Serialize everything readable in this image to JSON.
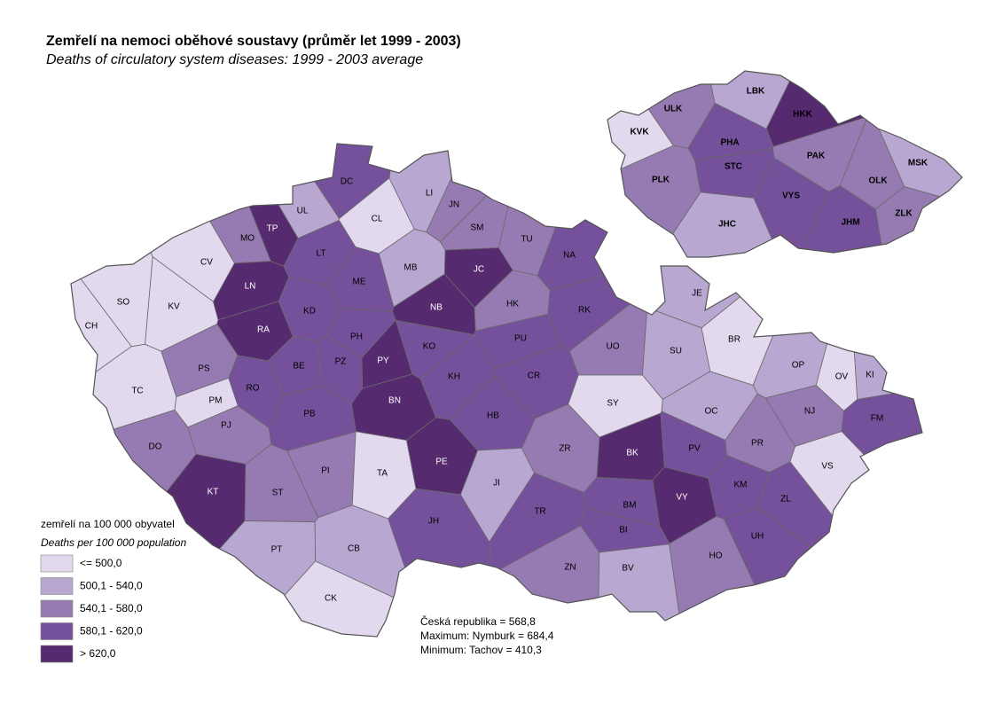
{
  "title": "Zemřelí na nemoci oběhové soustavy (průměr let 1999 - 2003)",
  "subtitle": "Deaths of circulatory system diseases: 1999 - 2003 average",
  "legend": {
    "title": "zemřelí na 100 000 obyvatel",
    "subtitle": "Deaths per 100 000 population",
    "items": [
      {
        "label": "<= 500,0",
        "color": "#e2d9ef"
      },
      {
        "label": "500,1 - 540,0",
        "color": "#b8a7d1"
      },
      {
        "label": "540,1 - 580,0",
        "color": "#967bb2"
      },
      {
        "label": "580,1 - 620,0",
        "color": "#75519b"
      },
      {
        "label": "> 620,0",
        "color": "#552a6f"
      }
    ]
  },
  "districts": [
    {
      "label": "TP",
      "color": "#552a6f"
    },
    {
      "label": "UL",
      "color": "#b8a7d1"
    },
    {
      "label": "DC",
      "color": "#75519b"
    },
    {
      "label": "CL",
      "color": "#e2d9ef"
    },
    {
      "label": "LI",
      "color": "#b8a7d1"
    },
    {
      "label": "JN",
      "color": "#967bb2"
    },
    {
      "label": "SM",
      "color": "#967bb2"
    },
    {
      "label": "TU",
      "color": "#967bb2"
    },
    {
      "label": "NA",
      "color": "#75519b"
    },
    {
      "label": "MO",
      "color": "#967bb2"
    },
    {
      "label": "CV",
      "color": "#e2d9ef"
    },
    {
      "label": "SO",
      "color": "#e2d9ef"
    },
    {
      "label": "KV",
      "color": "#e2d9ef"
    },
    {
      "label": "CH",
      "color": "#e2d9ef"
    },
    {
      "label": "LN",
      "color": "#552a6f"
    },
    {
      "label": "LT",
      "color": "#75519b"
    },
    {
      "label": "ME",
      "color": "#75519b"
    },
    {
      "label": "MB",
      "color": "#b8a7d1"
    },
    {
      "label": "JC",
      "color": "#552a6f"
    },
    {
      "label": "JE",
      "color": "#b8a7d1"
    },
    {
      "label": "KD",
      "color": "#75519b"
    },
    {
      "label": "NB",
      "color": "#552a6f"
    },
    {
      "label": "HK",
      "color": "#967bb2"
    },
    {
      "label": "RK",
      "color": "#75519b"
    },
    {
      "label": "RA",
      "color": "#552a6f"
    },
    {
      "label": "PH",
      "color": "#75519b"
    },
    {
      "label": "PY",
      "color": "#552a6f"
    },
    {
      "label": "KO",
      "color": "#75519b"
    },
    {
      "label": "PU",
      "color": "#75519b"
    },
    {
      "label": "UO",
      "color": "#967bb2"
    },
    {
      "label": "SU",
      "color": "#b8a7d1"
    },
    {
      "label": "BR",
      "color": "#e2d9ef"
    },
    {
      "label": "OP",
      "color": "#b8a7d1"
    },
    {
      "label": "KI",
      "color": "#b8a7d1"
    },
    {
      "label": "OV",
      "color": "#e2d9ef"
    },
    {
      "label": "PS",
      "color": "#967bb2"
    },
    {
      "label": "BE",
      "color": "#75519b"
    },
    {
      "label": "PZ",
      "color": "#75519b"
    },
    {
      "label": "RO",
      "color": "#75519b"
    },
    {
      "label": "KH",
      "color": "#75519b"
    },
    {
      "label": "CR",
      "color": "#75519b"
    },
    {
      "label": "TC",
      "color": "#e2d9ef"
    },
    {
      "label": "PM",
      "color": "#e2d9ef"
    },
    {
      "label": "BN",
      "color": "#552a6f"
    },
    {
      "label": "SY",
      "color": "#e2d9ef"
    },
    {
      "label": "OC",
      "color": "#b8a7d1"
    },
    {
      "label": "NJ",
      "color": "#967bb2"
    },
    {
      "label": "FM",
      "color": "#75519b"
    },
    {
      "label": "PJ",
      "color": "#967bb2"
    },
    {
      "label": "PB",
      "color": "#75519b"
    },
    {
      "label": "HB",
      "color": "#75519b"
    },
    {
      "label": "PR",
      "color": "#967bb2"
    },
    {
      "label": "DO",
      "color": "#967bb2"
    },
    {
      "label": "PI",
      "color": "#967bb2"
    },
    {
      "label": "TA",
      "color": "#e2d9ef"
    },
    {
      "label": "PE",
      "color": "#552a6f"
    },
    {
      "label": "ZR",
      "color": "#967bb2"
    },
    {
      "label": "BK",
      "color": "#552a6f"
    },
    {
      "label": "PV",
      "color": "#75519b"
    },
    {
      "label": "VS",
      "color": "#e2d9ef"
    },
    {
      "label": "KT",
      "color": "#552a6f"
    },
    {
      "label": "ST",
      "color": "#967bb2"
    },
    {
      "label": "JI",
      "color": "#b8a7d1"
    },
    {
      "label": "VY",
      "color": "#552a6f"
    },
    {
      "label": "KM",
      "color": "#75519b"
    },
    {
      "label": "ZL",
      "color": "#75519b"
    },
    {
      "label": "TR",
      "color": "#75519b"
    },
    {
      "label": "BM",
      "color": "#75519b"
    },
    {
      "label": "JH",
      "color": "#75519b"
    },
    {
      "label": "BI",
      "color": "#75519b"
    },
    {
      "label": "UH",
      "color": "#75519b"
    },
    {
      "label": "PT",
      "color": "#b8a7d1"
    },
    {
      "label": "CB",
      "color": "#b8a7d1"
    },
    {
      "label": "HO",
      "color": "#967bb2"
    },
    {
      "label": "ZN",
      "color": "#967bb2"
    },
    {
      "label": "BV",
      "color": "#b8a7d1"
    },
    {
      "label": "CK",
      "color": "#e2d9ef"
    }
  ],
  "regions": [
    {
      "label": "KVK",
      "color": "#e2d9ef"
    },
    {
      "label": "ULK",
      "color": "#967bb2"
    },
    {
      "label": "LBK",
      "color": "#b8a7d1"
    },
    {
      "label": "HKK",
      "color": "#552a6f"
    },
    {
      "label": "PHA",
      "color": "#75519b"
    },
    {
      "label": "STC",
      "color": "#75519b"
    },
    {
      "label": "PAK",
      "color": "#967bb2"
    },
    {
      "label": "MSK",
      "color": "#b8a7d1"
    },
    {
      "label": "PLK",
      "color": "#967bb2"
    },
    {
      "label": "OLK",
      "color": "#967bb2"
    },
    {
      "label": "VYS",
      "color": "#75519b"
    },
    {
      "label": "ZLK",
      "color": "#967bb2"
    },
    {
      "label": "JHC",
      "color": "#b8a7d1"
    },
    {
      "label": "JHM",
      "color": "#75519b"
    }
  ],
  "stats": [
    "Česká republika = 568,8",
    "Maximum: Nymburk = 684,4",
    "Minimum: Tachov = 410,3"
  ]
}
